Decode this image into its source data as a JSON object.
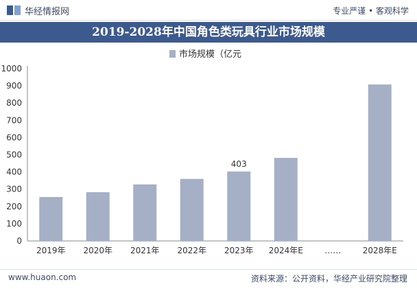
{
  "header": {
    "brand": "华经情报网",
    "slogan": "专业严谨 • 客观科学"
  },
  "title": "2019-2028年中国角色类玩具行业市场规模",
  "footer": {
    "website": "www.huaon.com",
    "source": "资料来源：公开资料，华经产业研究院整理"
  },
  "colors": {
    "bar": "#a5afc6",
    "title_bg": "#3d5a8f",
    "brand": "#3b4a6b"
  },
  "chart_data": {
    "type": "bar",
    "categories": [
      "2019年",
      "2020年",
      "2021年",
      "2022年",
      "2023年",
      "2024年E",
      "……",
      "2028年E"
    ],
    "series": [
      {
        "name": "市场规模（亿元",
        "values": [
          255,
          283,
          328,
          360,
          403,
          482,
          null,
          908
        ]
      }
    ],
    "data_labels": [
      {
        "category": "2023年",
        "text": "403"
      }
    ],
    "ylim": [
      0,
      1000
    ],
    "yticks": [
      0,
      100,
      200,
      300,
      400,
      500,
      600,
      700,
      800,
      900,
      1000
    ],
    "legend_position": "top-center",
    "grid": false
  }
}
